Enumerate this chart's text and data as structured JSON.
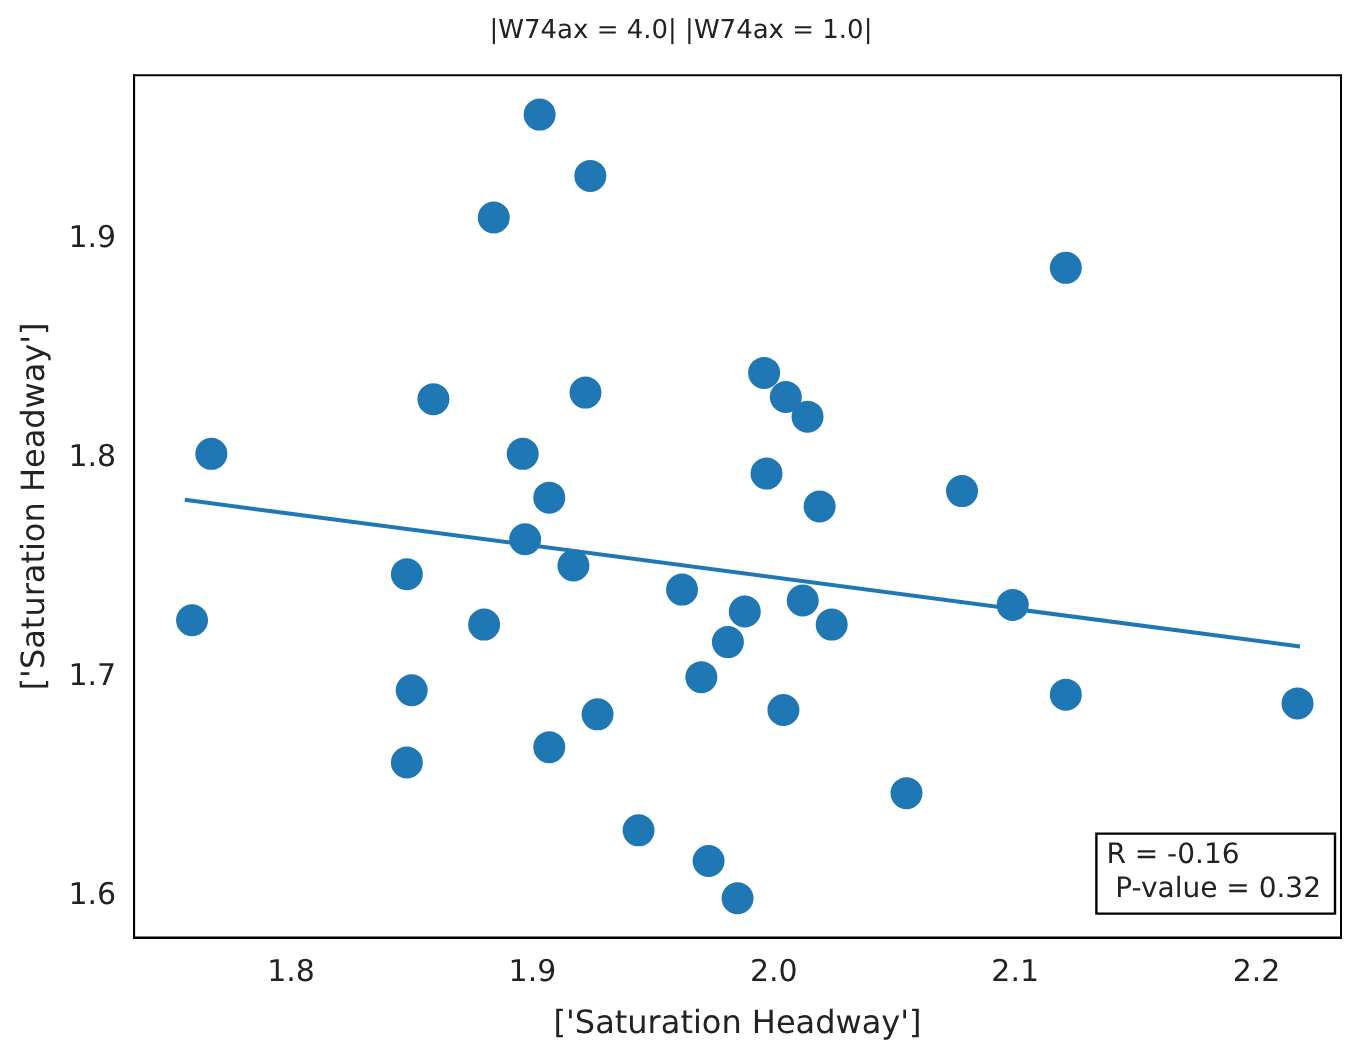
{
  "chart_data": {
    "type": "scatter",
    "title": "|W74ax = 4.0| |W74ax = 1.0|",
    "xlabel": "['Saturation Headway']",
    "ylabel": "['Saturation Headway']",
    "xlim": [
      1.735,
      2.235
    ],
    "ylim": [
      1.581,
      1.975
    ],
    "xticks": [
      1.8,
      1.9,
      {
        "value": 2,
        "label": "2.0"
      },
      2.1,
      2.2
    ],
    "yticks": [
      1.6,
      1.7,
      1.8,
      1.9
    ],
    "grid": false,
    "legend": false,
    "marker": "circle",
    "annotations": [
      "R = -0.16",
      " P-value = 0.32"
    ],
    "series": [
      {
        "color": "#1f77b4",
        "x": [
          1.903,
          1.924,
          1.884,
          1.859,
          1.922,
          1.767,
          1.896,
          1.907,
          2.121,
          1.996,
          2.005,
          2.014,
          1.997,
          2.019,
          2.078,
          1.897,
          1.917,
          1.848,
          1.759,
          1.88,
          1.962,
          1.988,
          1.981,
          1.97,
          1.85,
          1.927,
          1.907,
          1.848,
          1.944,
          1.973,
          1.985,
          2.012,
          2.024,
          2.099,
          2.121,
          2.217,
          2.004,
          2.055
        ],
        "values": [
          1.957,
          1.929,
          1.91,
          1.827,
          1.83,
          1.802,
          1.802,
          1.782,
          1.887,
          1.839,
          1.828,
          1.819,
          1.793,
          1.778,
          1.785,
          1.763,
          1.751,
          1.747,
          1.726,
          1.724,
          1.74,
          1.73,
          1.716,
          1.7,
          1.694,
          1.683,
          1.668,
          1.661,
          1.63,
          1.616,
          1.599,
          1.735,
          1.724,
          1.733,
          1.692,
          1.688,
          1.685,
          1.647
        ]
      },
      {
        "type": "line",
        "marker": "none",
        "color": "#1f77b4",
        "x": [
          1.756,
          2.218
        ],
        "values": [
          1.781,
          1.714
        ]
      }
    ]
  }
}
